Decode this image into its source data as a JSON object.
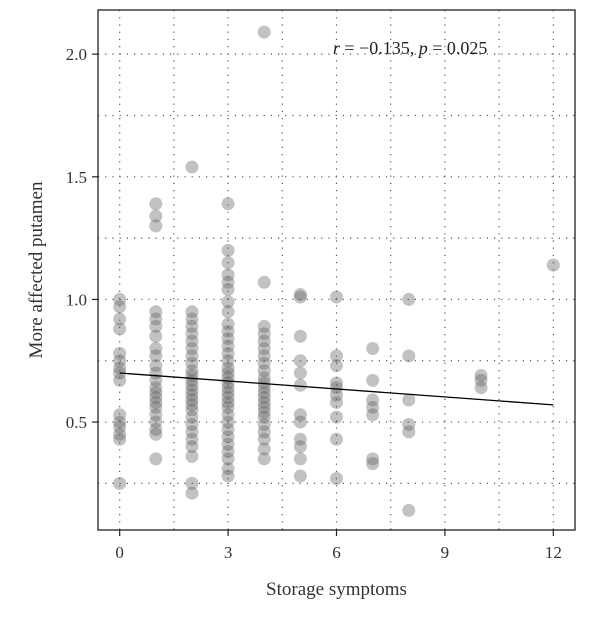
{
  "chart_data": {
    "type": "scatter",
    "xlabel": "Storage symptoms",
    "ylabel": "More affected putamen",
    "xlim": [
      -0.6,
      12.6
    ],
    "ylim": [
      0.06,
      2.18
    ],
    "xticks": [
      0,
      3,
      6,
      9,
      12
    ],
    "yticks": [
      0.5,
      1.0,
      1.5,
      2.0
    ],
    "xtick_labels": [
      "0",
      "3",
      "6",
      "9",
      "12"
    ],
    "ytick_labels": [
      "0.5",
      "1.0",
      "1.5",
      "2.0"
    ],
    "grid": true,
    "annotation": {
      "r_symbol": "r",
      "r_value": " = −0.135, ",
      "p_symbol": "p",
      "p_value": " = 0.025",
      "x": 5.9,
      "y": 2.0
    },
    "trendline": {
      "x": [
        0,
        12
      ],
      "y": [
        0.7,
        0.57
      ]
    },
    "points": [
      [
        0,
        1.0
      ],
      [
        0,
        0.97
      ],
      [
        0,
        0.92
      ],
      [
        0,
        0.88
      ],
      [
        0,
        0.78
      ],
      [
        0,
        0.75
      ],
      [
        0,
        0.72
      ],
      [
        0,
        0.7
      ],
      [
        0,
        0.67
      ],
      [
        0,
        0.53
      ],
      [
        0,
        0.5
      ],
      [
        0,
        0.48
      ],
      [
        0,
        0.45
      ],
      [
        0,
        0.43
      ],
      [
        0,
        0.25
      ],
      [
        1,
        1.39
      ],
      [
        1,
        1.34
      ],
      [
        1,
        1.3
      ],
      [
        1,
        0.95
      ],
      [
        1,
        0.92
      ],
      [
        1,
        0.89
      ],
      [
        1,
        0.85
      ],
      [
        1,
        0.8
      ],
      [
        1,
        0.77
      ],
      [
        1,
        0.73
      ],
      [
        1,
        0.7
      ],
      [
        1,
        0.67
      ],
      [
        1,
        0.64
      ],
      [
        1,
        0.62
      ],
      [
        1,
        0.6
      ],
      [
        1,
        0.58
      ],
      [
        1,
        0.56
      ],
      [
        1,
        0.53
      ],
      [
        1,
        0.5
      ],
      [
        1,
        0.47
      ],
      [
        1,
        0.45
      ],
      [
        1,
        0.35
      ],
      [
        2,
        1.54
      ],
      [
        2,
        0.95
      ],
      [
        2,
        0.92
      ],
      [
        2,
        0.89
      ],
      [
        2,
        0.86
      ],
      [
        2,
        0.83
      ],
      [
        2,
        0.8
      ],
      [
        2,
        0.77
      ],
      [
        2,
        0.74
      ],
      [
        2,
        0.71
      ],
      [
        2,
        0.69
      ],
      [
        2,
        0.67
      ],
      [
        2,
        0.65
      ],
      [
        2,
        0.63
      ],
      [
        2,
        0.61
      ],
      [
        2,
        0.59
      ],
      [
        2,
        0.57
      ],
      [
        2,
        0.55
      ],
      [
        2,
        0.52
      ],
      [
        2,
        0.49
      ],
      [
        2,
        0.46
      ],
      [
        2,
        0.43
      ],
      [
        2,
        0.4
      ],
      [
        2,
        0.36
      ],
      [
        2,
        0.25
      ],
      [
        2,
        0.21
      ],
      [
        3,
        1.39
      ],
      [
        3,
        1.2
      ],
      [
        3,
        1.15
      ],
      [
        3,
        1.1
      ],
      [
        3,
        1.07
      ],
      [
        3,
        1.04
      ],
      [
        3,
        0.99
      ],
      [
        3,
        0.95
      ],
      [
        3,
        0.9
      ],
      [
        3,
        0.87
      ],
      [
        3,
        0.84
      ],
      [
        3,
        0.81
      ],
      [
        3,
        0.78
      ],
      [
        3,
        0.75
      ],
      [
        3,
        0.72
      ],
      [
        3,
        0.7
      ],
      [
        3,
        0.68
      ],
      [
        3,
        0.66
      ],
      [
        3,
        0.64
      ],
      [
        3,
        0.62
      ],
      [
        3,
        0.6
      ],
      [
        3,
        0.58
      ],
      [
        3,
        0.56
      ],
      [
        3,
        0.53
      ],
      [
        3,
        0.5
      ],
      [
        3,
        0.47
      ],
      [
        3,
        0.44
      ],
      [
        3,
        0.41
      ],
      [
        3,
        0.38
      ],
      [
        3,
        0.35
      ],
      [
        3,
        0.31
      ],
      [
        3,
        0.28
      ],
      [
        4,
        2.09
      ],
      [
        4,
        1.07
      ],
      [
        4,
        0.89
      ],
      [
        4,
        0.86
      ],
      [
        4,
        0.83
      ],
      [
        4,
        0.8
      ],
      [
        4,
        0.77
      ],
      [
        4,
        0.74
      ],
      [
        4,
        0.71
      ],
      [
        4,
        0.68
      ],
      [
        4,
        0.66
      ],
      [
        4,
        0.64
      ],
      [
        4,
        0.62
      ],
      [
        4,
        0.6
      ],
      [
        4,
        0.58
      ],
      [
        4,
        0.56
      ],
      [
        4,
        0.54
      ],
      [
        4,
        0.52
      ],
      [
        4,
        0.49
      ],
      [
        4,
        0.46
      ],
      [
        4,
        0.43
      ],
      [
        4,
        0.39
      ],
      [
        4,
        0.35
      ],
      [
        5,
        1.02
      ],
      [
        5,
        1.01
      ],
      [
        5,
        0.85
      ],
      [
        5,
        0.75
      ],
      [
        5,
        0.7
      ],
      [
        5,
        0.65
      ],
      [
        5,
        0.53
      ],
      [
        5,
        0.5
      ],
      [
        5,
        0.43
      ],
      [
        5,
        0.4
      ],
      [
        5,
        0.35
      ],
      [
        5,
        0.28
      ],
      [
        6,
        1.01
      ],
      [
        6,
        0.77
      ],
      [
        6,
        0.73
      ],
      [
        6,
        0.66
      ],
      [
        6,
        0.64
      ],
      [
        6,
        0.61
      ],
      [
        6,
        0.58
      ],
      [
        6,
        0.52
      ],
      [
        6,
        0.43
      ],
      [
        6,
        0.27
      ],
      [
        7,
        0.8
      ],
      [
        7,
        0.67
      ],
      [
        7,
        0.59
      ],
      [
        7,
        0.56
      ],
      [
        7,
        0.53
      ],
      [
        7,
        0.35
      ],
      [
        7,
        0.33
      ],
      [
        8,
        1.0
      ],
      [
        8,
        0.77
      ],
      [
        8,
        0.59
      ],
      [
        8,
        0.49
      ],
      [
        8,
        0.46
      ],
      [
        8,
        0.14
      ],
      [
        10,
        0.69
      ],
      [
        10,
        0.67
      ],
      [
        10,
        0.64
      ],
      [
        12,
        1.14
      ]
    ]
  }
}
